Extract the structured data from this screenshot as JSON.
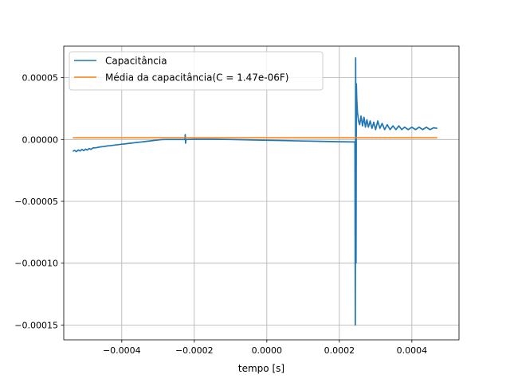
{
  "chart_data": {
    "type": "line",
    "title": "",
    "xlabel": "tempo [s]",
    "ylabel": "",
    "xlim": [
      -0.00056,
      0.00053
    ],
    "ylim": [
      -0.000162,
      7.55e-05
    ],
    "grid": true,
    "legend_position": "upper-left",
    "xticks": [
      -0.0004,
      -0.0002,
      0.0,
      0.0002,
      0.0004
    ],
    "xtick_labels": [
      "−0.0004",
      "−0.0002",
      "0.0000",
      "0.0002",
      "0.0004"
    ],
    "yticks": [
      5e-05,
      0.0,
      -5e-05,
      -0.0001,
      -0.00015
    ],
    "ytick_labels": [
      "0.00005",
      "0.00000",
      "−0.00005",
      "−0.00010",
      "−0.00015"
    ],
    "colors": {
      "capacitance": "#1f77b4",
      "mean": "#ff7f0e",
      "grid": "#b0b0b0",
      "axes": "#000000"
    },
    "series": [
      {
        "name": "Capacitância",
        "points": [
          [
            -0.000535,
            -9.5e-06
          ],
          [
            -0.00053,
            -8.8e-06
          ],
          [
            -0.000525,
            -9.8e-06
          ],
          [
            -0.00052,
            -8.5e-06
          ],
          [
            -0.000515,
            -9.3e-06
          ],
          [
            -0.00051,
            -8e-06
          ],
          [
            -0.000505,
            -9e-06
          ],
          [
            -0.0005,
            -7.8e-06
          ],
          [
            -0.000495,
            -8.5e-06
          ],
          [
            -0.00049,
            -7.3e-06
          ],
          [
            -0.000485,
            -8e-06
          ],
          [
            -0.00048,
            -6.9e-06
          ],
          [
            -0.00047,
            -6.6e-06
          ],
          [
            -0.00046,
            -6e-06
          ],
          [
            -0.00045,
            -5.7e-06
          ],
          [
            -0.00044,
            -5.2e-06
          ],
          [
            -0.00043,
            -4.9e-06
          ],
          [
            -0.00042,
            -4.5e-06
          ],
          [
            -0.00041,
            -4.2e-06
          ],
          [
            -0.0004,
            -3.8e-06
          ],
          [
            -0.00039,
            -3.5e-06
          ],
          [
            -0.00038,
            -3.1e-06
          ],
          [
            -0.00037,
            -2.8e-06
          ],
          [
            -0.00036,
            -2.4e-06
          ],
          [
            -0.00035,
            -2.1e-06
          ],
          [
            -0.00034,
            -1.8e-06
          ],
          [
            -0.00033,
            -1.4e-06
          ],
          [
            -0.00032,
            -1.1e-06
          ],
          [
            -0.00031,
            -7e-07
          ],
          [
            -0.0003,
            -4e-07
          ],
          [
            -0.00029,
            -1e-07
          ],
          [
            -0.00028,
            0.0
          ],
          [
            -0.00026,
            0.0
          ],
          [
            -0.00024,
            0.0
          ],
          [
            -0.000226,
            0.0
          ],
          [
            -0.000225,
            4e-06
          ],
          [
            -0.000224,
            -3e-06
          ],
          [
            -0.000223,
            0.0
          ],
          [
            -0.0002,
            2e-07
          ],
          [
            -0.00015,
            2e-07
          ],
          [
            -0.0001,
            0.0
          ],
          [
            -5e-05,
            -3e-07
          ],
          [
            0.0,
            -6e-07
          ],
          [
            5e-05,
            -9e-07
          ],
          [
            0.0001,
            -1.2e-06
          ],
          [
            0.00015,
            -1.5e-06
          ],
          [
            0.0002,
            -1.8e-06
          ],
          [
            0.000243,
            -2e-06
          ],
          [
            0.000244,
            -0.00015
          ],
          [
            0.000245,
            6.6e-05
          ],
          [
            0.000246,
            -0.0001
          ],
          [
            0.000247,
            4.5e-05
          ],
          [
            0.000248,
            3.3e-05
          ],
          [
            0.00025,
            2.2e-05
          ],
          [
            0.000253,
            1.5e-05
          ],
          [
            0.000256,
            1.2e-05
          ],
          [
            0.00026,
            1.9e-05
          ],
          [
            0.000264,
            1.1e-05
          ],
          [
            0.000268,
            1.8e-05
          ],
          [
            0.000272,
            1e-05
          ],
          [
            0.000276,
            1.6e-05
          ],
          [
            0.00028,
            1e-05
          ],
          [
            0.000285,
            1.5e-05
          ],
          [
            0.00029,
            9e-06
          ],
          [
            0.000295,
            1.4e-05
          ],
          [
            0.0003,
            8e-06
          ],
          [
            0.000306,
            1.5e-05
          ],
          [
            0.000312,
            9e-06
          ],
          [
            0.000318,
            1.3e-05
          ],
          [
            0.000325,
            8e-06
          ],
          [
            0.000332,
            1.2e-05
          ],
          [
            0.00034,
            8e-06
          ],
          [
            0.000348,
            1.1e-05
          ],
          [
            0.000356,
            8e-06
          ],
          [
            0.000364,
            1.1e-05
          ],
          [
            0.000372,
            8e-06
          ],
          [
            0.00038,
            1e-05
          ],
          [
            0.00039,
            8e-06
          ],
          [
            0.0004,
            1e-05
          ],
          [
            0.00041,
            8e-06
          ],
          [
            0.00042,
            1e-05
          ],
          [
            0.00043,
            8e-06
          ],
          [
            0.00044,
            1e-05
          ],
          [
            0.00045,
            8e-06
          ],
          [
            0.00046,
            9.5e-06
          ],
          [
            0.00047,
            9e-06
          ]
        ]
      },
      {
        "name": "Média da capacitância(C = 1.47e-06F)",
        "points": [
          [
            -0.000535,
            1.47e-06
          ],
          [
            0.00047,
            1.47e-06
          ]
        ]
      }
    ]
  }
}
